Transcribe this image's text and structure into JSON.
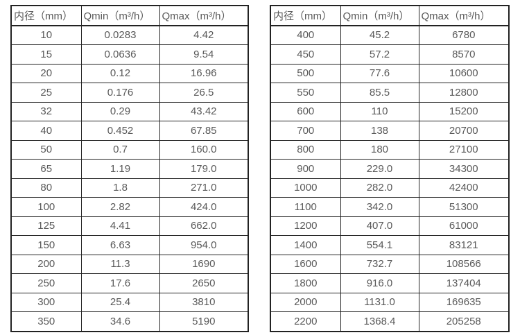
{
  "colors": {
    "border": "#222222",
    "text": "#595959",
    "background": "#ffffff"
  },
  "tables": [
    {
      "name": "flow-spec-small-diameters",
      "columns": [
        "内径（mm）",
        "Qmin（m³/h）",
        "Qmax（m³/h）"
      ],
      "rows": [
        [
          "10",
          "0.0283",
          "4.42"
        ],
        [
          "15",
          "0.0636",
          "9.54"
        ],
        [
          "20",
          "0.12",
          "16.96"
        ],
        [
          "25",
          "0.176",
          "26.5"
        ],
        [
          "32",
          "0.29",
          "43.42"
        ],
        [
          "40",
          "0.452",
          "67.85"
        ],
        [
          "50",
          "0.7",
          "160.0"
        ],
        [
          "65",
          "1.19",
          "179.0"
        ],
        [
          "80",
          "1.8",
          "271.0"
        ],
        [
          "100",
          "2.82",
          "424.0"
        ],
        [
          "125",
          "4.41",
          "662.0"
        ],
        [
          "150",
          "6.63",
          "954.0"
        ],
        [
          "200",
          "11.3",
          "1690"
        ],
        [
          "250",
          "17.6",
          "2650"
        ],
        [
          "300",
          "25.4",
          "3810"
        ],
        [
          "350",
          "34.6",
          "5190"
        ]
      ]
    },
    {
      "name": "flow-spec-large-diameters",
      "columns": [
        "内径（mm）",
        "Qmin（m³/h）",
        "Qmax（m³/h）"
      ],
      "rows": [
        [
          "400",
          "45.2",
          "6780"
        ],
        [
          "450",
          "57.2",
          "8570"
        ],
        [
          "500",
          "77.6",
          "10600"
        ],
        [
          "550",
          "85.5",
          "12800"
        ],
        [
          "600",
          "110",
          "15200"
        ],
        [
          "700",
          "138",
          "20700"
        ],
        [
          "800",
          "180",
          "27100"
        ],
        [
          "900",
          "229.0",
          "34300"
        ],
        [
          "1000",
          "282.0",
          "42400"
        ],
        [
          "1100",
          "342.0",
          "51300"
        ],
        [
          "1200",
          "407.0",
          "61000"
        ],
        [
          "1400",
          "554.1",
          "83121"
        ],
        [
          "1600",
          "732.7",
          "108566"
        ],
        [
          "1800",
          "916.0",
          "137404"
        ],
        [
          "2000",
          "1131.0",
          "169635"
        ],
        [
          "2200",
          "1368.4",
          "205258"
        ]
      ]
    }
  ]
}
